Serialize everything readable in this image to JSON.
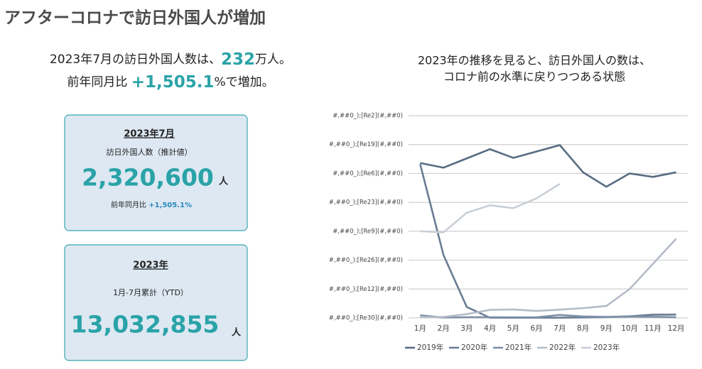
{
  "header": {
    "title": "アフターコロナで訪日外国人が増加"
  },
  "summary": {
    "line1": [
      "2023年7月の訪日外国人数は、",
      "232",
      "万人。"
    ],
    "line2": [
      "前年同月比 ",
      "+1,505.1",
      "%で増加。"
    ]
  },
  "cards": [
    {
      "heading": "2023年7月",
      "label": "訪日外国人数（推計値）",
      "value": "2,320,600",
      "unit": "人",
      "note": [
        "前年同月比 ",
        "+1,505.1%"
      ]
    },
    {
      "heading": "2023年",
      "label": "1月-7月累計（YTD）",
      "value": "13,032,855",
      "unit": "人"
    }
  ],
  "chart_data": {
    "type": "line",
    "title": [
      "2023年の推移を見ると、訪日外国人の数は、",
      "コロナ前の水準に戻りつつある状態"
    ],
    "categories": [
      "1月",
      "2月",
      "3月",
      "4月",
      "5月",
      "6月",
      "7月",
      "8月",
      "9月",
      "10月",
      "11月",
      "12月"
    ],
    "series": [
      {
        "name": "2019年",
        "color": "#586c83",
        "values": [
          268,
          260,
          276,
          292,
          277,
          288,
          299,
          252,
          227,
          250,
          244,
          252
        ]
      },
      {
        "name": "2020年",
        "color": "#6a7c93",
        "values": [
          266,
          109,
          19,
          0.3,
          0.2,
          0.3,
          0.4,
          0.8,
          1.4,
          2.8,
          5.6,
          5.8
        ]
      },
      {
        "name": "2021年",
        "color": "#7e90a8",
        "values": [
          4.6,
          0.7,
          1.2,
          1.1,
          1.0,
          1.0,
          5.2,
          2.6,
          1.8,
          2.2,
          2.1,
          1.2
        ]
      },
      {
        "name": "2022年",
        "color": "#b4bcc7",
        "values": [
          1.7,
          1.7,
          6.6,
          13.9,
          14.7,
          12.0,
          14.4,
          16.9,
          20.7,
          49.9,
          93.5,
          137
        ]
      },
      {
        "name": "2023年",
        "color": "#c9cfd6",
        "values": [
          150,
          148,
          182,
          195,
          190,
          207,
          232,
          null,
          null,
          null,
          null,
          null
        ]
      }
    ],
    "ylim": [
      0,
      350
    ],
    "yticks": [
      {
        "value": 0,
        "label": "#,##0_);[Re30](#,##0)"
      },
      {
        "value": 50,
        "label": "#,##0_);[Re12](#,##0)"
      },
      {
        "value": 100,
        "label": "#,##0_);[Re26](#,##0)"
      },
      {
        "value": 150,
        "label": "#,##0_);[Re9](#,##0)"
      },
      {
        "value": 200,
        "label": "#,##0_);[Re23](#,##0)"
      },
      {
        "value": 250,
        "label": "#,##0_);[Re6](#,##0)"
      },
      {
        "value": 300,
        "label": "#,##0_);[Re19](#,##0)"
      },
      {
        "value": 350,
        "label": "#,##0_);[Re2](#,##0)"
      }
    ],
    "grid": true,
    "legend": "bottom"
  }
}
